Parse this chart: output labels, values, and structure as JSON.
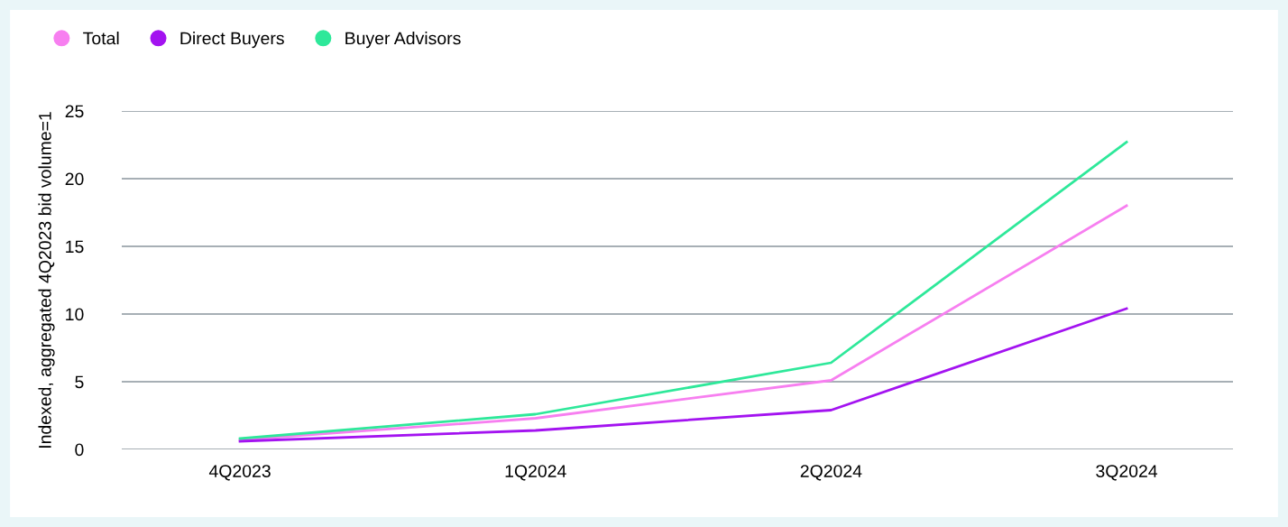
{
  "chart_data": {
    "type": "line",
    "ylabel": "Indexed, aggregated 4Q2023 bid volume=1",
    "categories": [
      "4Q2023",
      "1Q2024",
      "2Q2024",
      "3Q2024"
    ],
    "series": [
      {
        "name": "Total",
        "color": "#f77ff0",
        "values": [
          0.7,
          2.3,
          5.1,
          18.0
        ]
      },
      {
        "name": "Direct Buyers",
        "color": "#a313f0",
        "values": [
          0.6,
          1.4,
          2.9,
          10.4
        ]
      },
      {
        "name": "Buyer Advisors",
        "color": "#2ee89a",
        "values": [
          0.8,
          2.6,
          6.4,
          22.7
        ]
      }
    ],
    "ylim": [
      0,
      25
    ],
    "yticks": [
      0,
      5,
      10,
      15,
      20,
      25
    ],
    "grid": "y",
    "legend": "top left",
    "marker": "none",
    "line_style": "solid"
  }
}
